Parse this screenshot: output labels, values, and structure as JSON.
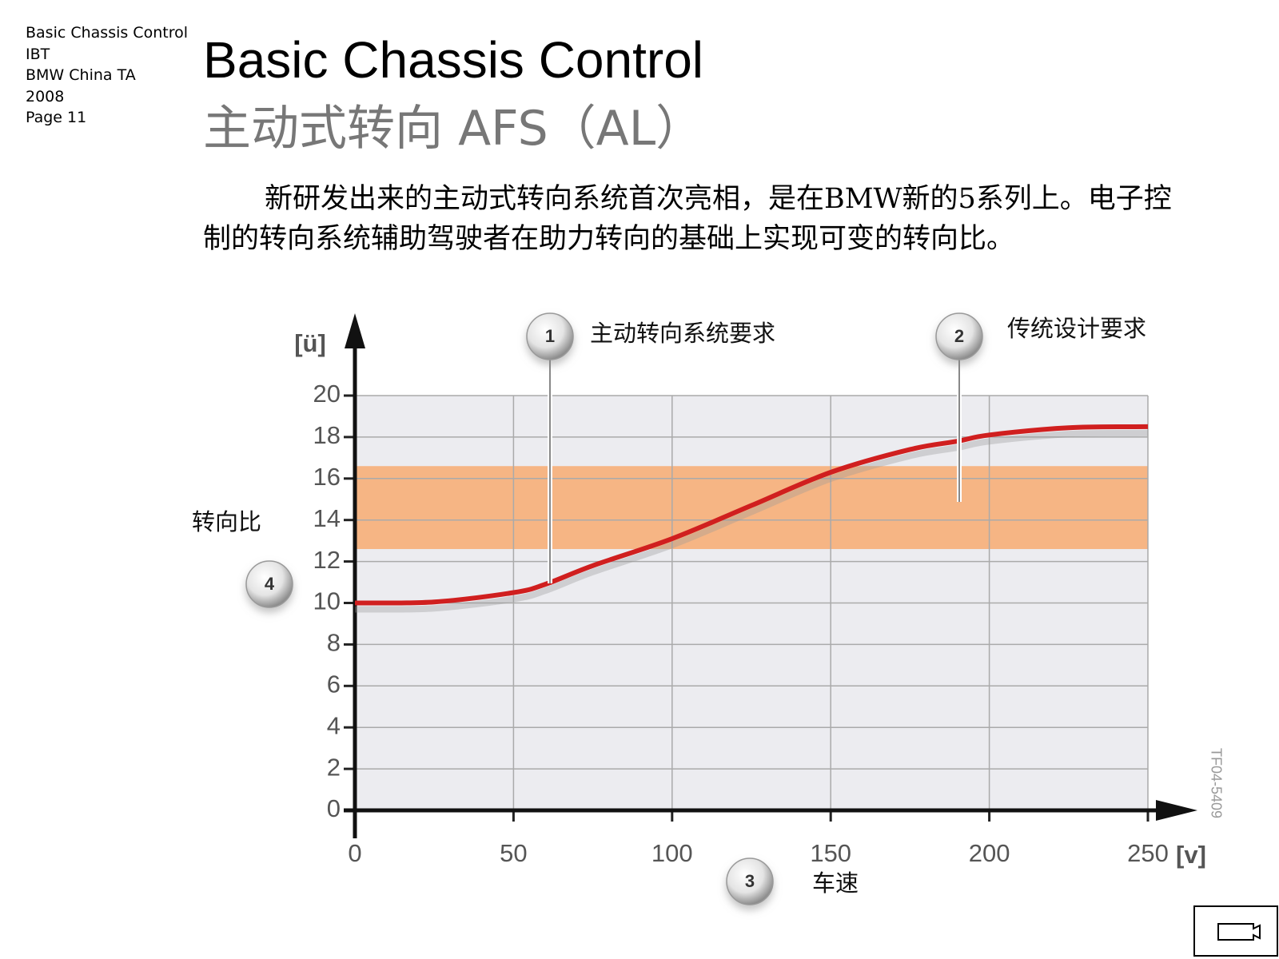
{
  "header": {
    "lines": [
      "Basic Chassis Control",
      "IBT",
      "BMW China TA",
      "2008",
      "Page  11"
    ]
  },
  "title": "Basic Chassis Control",
  "subtitle": "主动式转向 AFS（AL）",
  "paragraph": "新研发出来的主动式转向系统首次亮相，是在BMW新的5系列上。电子控制的转向系统辅助驾驶者在助力转向的基础上实现可变的转向比。",
  "chart_data": {
    "type": "line",
    "x_label": "[v]",
    "y_label": "[ü]",
    "x": [
      0,
      25,
      50,
      60,
      75,
      100,
      125,
      150,
      175,
      190,
      200,
      225,
      250
    ],
    "values": [
      10,
      10.05,
      10.5,
      10.9,
      11.8,
      13.1,
      14.7,
      16.3,
      17.4,
      17.8,
      18.1,
      18.45,
      18.5
    ],
    "color": "#d01f1f",
    "xlim": [
      0,
      250
    ],
    "xticks": [
      0,
      50,
      100,
      150,
      200,
      250
    ],
    "ylim": [
      0,
      20
    ],
    "yticks": [
      0,
      2,
      4,
      6,
      8,
      10,
      12,
      14,
      16,
      18,
      20
    ],
    "grid": true,
    "band": {
      "from": 12.6,
      "to": 16.6,
      "color": "#f6b584"
    },
    "annotations": [
      {
        "number": "1",
        "text": "主动转向系统要求"
      },
      {
        "number": "2",
        "text": "传统设计要求"
      },
      {
        "number": "3",
        "text": "车速"
      },
      {
        "number": "4",
        "text": "转向比"
      }
    ],
    "figure_code": "TF04-5409"
  }
}
